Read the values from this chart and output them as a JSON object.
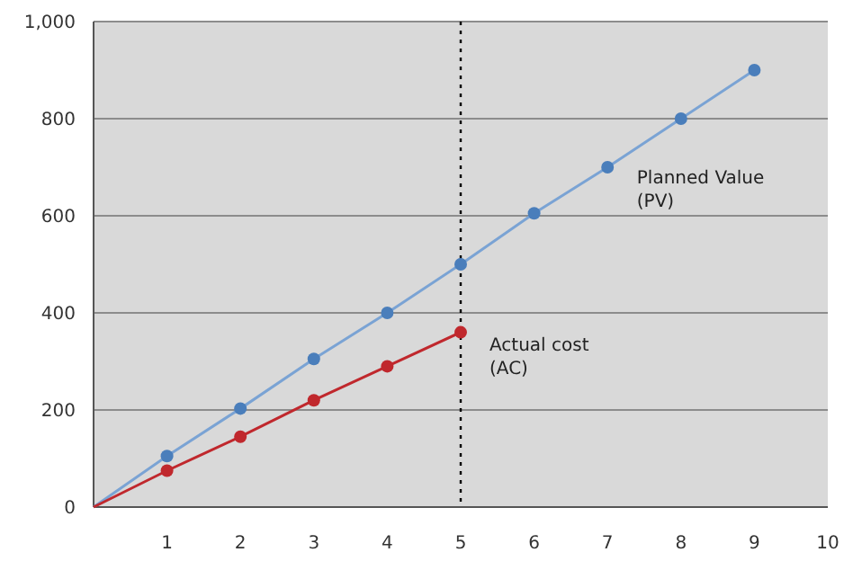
{
  "chart_data": {
    "type": "line",
    "xlim": [
      0,
      10
    ],
    "ylim": [
      0,
      1000
    ],
    "xticks": [
      1,
      2,
      3,
      4,
      5,
      6,
      7,
      8,
      9,
      10
    ],
    "yticks": [
      0,
      200,
      400,
      600,
      800,
      {
        "value": 1000,
        "label": "1,000"
      }
    ],
    "grid": "y",
    "series": [
      {
        "name": "Planned Value\n(PV)",
        "color": "#7aa3d4",
        "x": [
          0,
          1,
          2,
          3,
          4,
          5,
          6,
          7,
          8,
          9
        ],
        "values": [
          0,
          105,
          203,
          305,
          400,
          500,
          605,
          700,
          800,
          900
        ],
        "marker": "none"
      },
      {
        "type": "scatter",
        "color": "#4a7ebb",
        "x": [
          1,
          2,
          3,
          4,
          5,
          6,
          7,
          8,
          9
        ],
        "values": [
          105,
          203,
          305,
          400,
          500,
          605,
          700,
          800,
          900
        ],
        "marker": "circle"
      },
      {
        "name": "Actual cost\n(AC)",
        "color": "#c0282d",
        "x": [
          0,
          1,
          2,
          3,
          4,
          5
        ],
        "values": [
          0,
          75,
          145,
          220,
          290,
          360
        ],
        "marker": "none"
      },
      {
        "type": "scatter",
        "color": "#c0282d",
        "x": [
          1,
          2,
          3,
          4,
          5
        ],
        "values": [
          75,
          145,
          220,
          290,
          360
        ],
        "marker": "circle"
      }
    ],
    "ref_lines": [
      {
        "axis": "x",
        "value": 5,
        "color": "#000000",
        "line_style": "dotted"
      }
    ]
  }
}
